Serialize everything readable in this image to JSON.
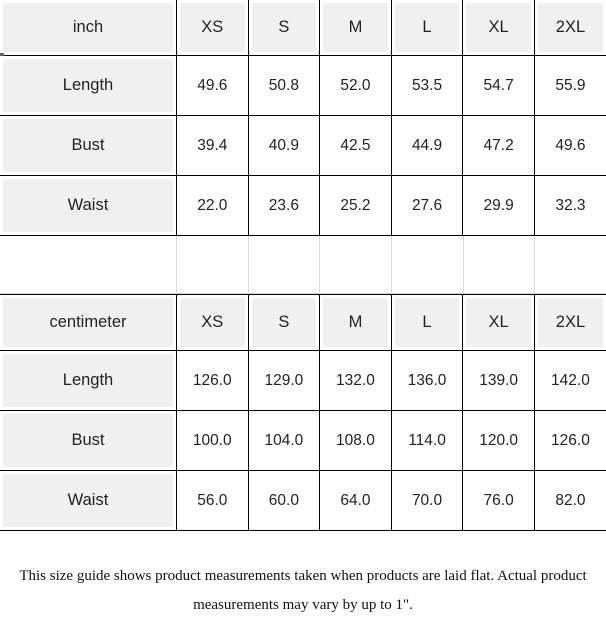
{
  "colors": {
    "grid_line": "#000000",
    "cell_background_grey": "#f0f0f0",
    "spacer_line_grey": "#d9d9d9",
    "text": "#222222",
    "artifact_green": "#3f7d40",
    "page_background": "#ffffff"
  },
  "tables": [
    {
      "unit": "inch",
      "sizes": [
        "XS",
        "S",
        "M",
        "L",
        "XL",
        "2XL"
      ],
      "rows": [
        {
          "label": "Length",
          "values": [
            "49.6",
            "50.8",
            "52.0",
            "53.5",
            "54.7",
            "55.9"
          ]
        },
        {
          "label": "Bust",
          "values": [
            "39.4",
            "40.9",
            "42.5",
            "44.9",
            "47.2",
            "49.6"
          ]
        },
        {
          "label": "Waist",
          "values": [
            "22.0",
            "23.6",
            "25.2",
            "27.6",
            "29.9",
            "32.3"
          ]
        }
      ]
    },
    {
      "unit": "centimeter",
      "sizes": [
        "XS",
        "S",
        "M",
        "L",
        "XL",
        "2XL"
      ],
      "rows": [
        {
          "label": "Length",
          "values": [
            "126.0",
            "129.0",
            "132.0",
            "136.0",
            "139.0",
            "142.0"
          ]
        },
        {
          "label": "Bust",
          "values": [
            "100.0",
            "104.0",
            "108.0",
            "114.0",
            "120.0",
            "126.0"
          ]
        },
        {
          "label": "Waist",
          "values": [
            "56.0",
            "60.0",
            "64.0",
            "70.0",
            "76.0",
            "82.0"
          ]
        }
      ]
    }
  ],
  "footer": {
    "line1": "This size guide shows product measurements taken when products are laid flat. Actual product",
    "line2": "measurements may vary by up to 1\"."
  }
}
